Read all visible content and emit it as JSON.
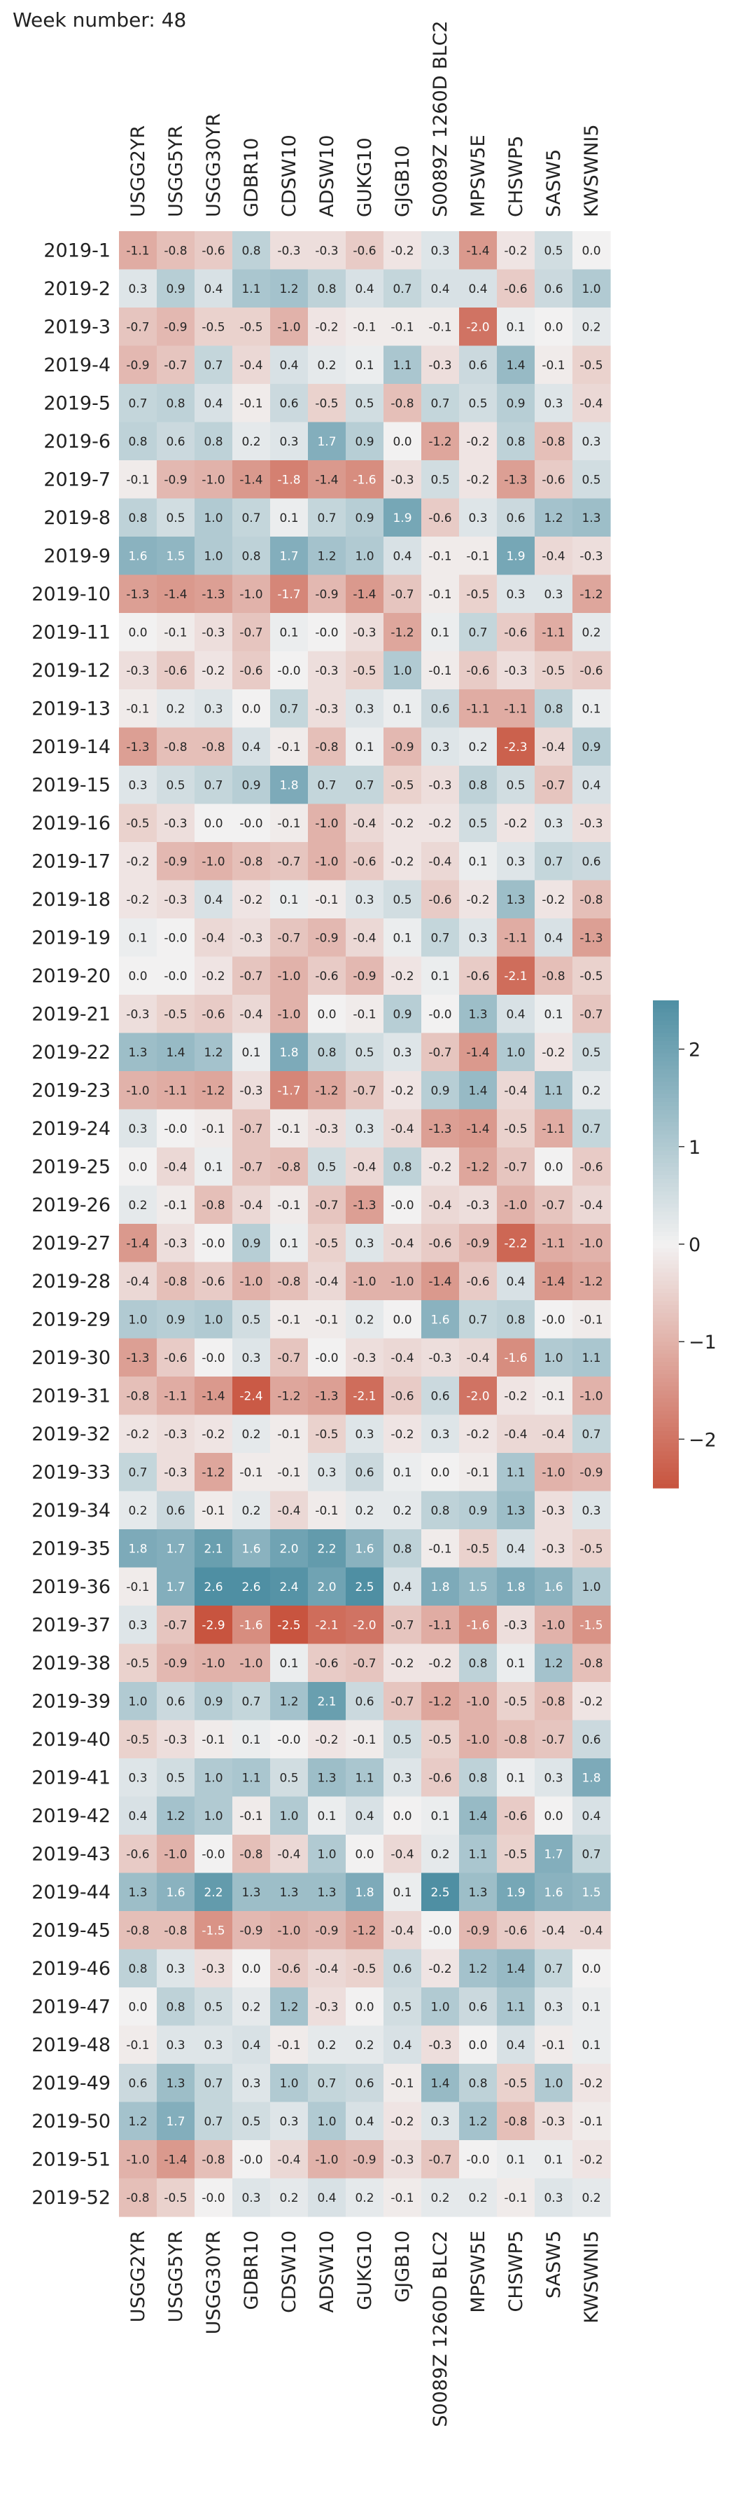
{
  "header": {
    "title": "Week number: 48"
  },
  "chart_data": {
    "type": "heatmap",
    "title": "Week number: 48",
    "columns": [
      "USGG2YR",
      "USGG5YR",
      "USGG30YR",
      "GDBR10",
      "CDSW10",
      "ADSW10",
      "GUKG10",
      "GJGB10",
      "S0089Z 1260D BLC2",
      "MPSW5E",
      "CHSWP5",
      "SASW5",
      "KWSWNI5"
    ],
    "rows": [
      "2019-1",
      "2019-2",
      "2019-3",
      "2019-4",
      "2019-5",
      "2019-6",
      "2019-7",
      "2019-8",
      "2019-9",
      "2019-10",
      "2019-11",
      "2019-12",
      "2019-13",
      "2019-14",
      "2019-15",
      "2019-16",
      "2019-17",
      "2019-18",
      "2019-19",
      "2019-20",
      "2019-21",
      "2019-22",
      "2019-23",
      "2019-24",
      "2019-25",
      "2019-26",
      "2019-27",
      "2019-28",
      "2019-29",
      "2019-30",
      "2019-31",
      "2019-32",
      "2019-33",
      "2019-34",
      "2019-35",
      "2019-36",
      "2019-37",
      "2019-38",
      "2019-39",
      "2019-40",
      "2019-41",
      "2019-42",
      "2019-43",
      "2019-44",
      "2019-45",
      "2019-46",
      "2019-47",
      "2019-48",
      "2019-49",
      "2019-50",
      "2019-51",
      "2019-52"
    ],
    "values": [
      [
        "-1.1",
        "-0.8",
        "-0.6",
        "0.8",
        "-0.3",
        "-0.3",
        "-0.6",
        "-0.2",
        "0.3",
        "-1.4",
        "-0.2",
        "0.5",
        "0.0"
      ],
      [
        "0.3",
        "0.9",
        "0.4",
        "1.1",
        "1.2",
        "0.8",
        "0.4",
        "0.7",
        "0.4",
        "0.4",
        "-0.6",
        "0.6",
        "1.0"
      ],
      [
        "-0.7",
        "-0.9",
        "-0.5",
        "-0.5",
        "-1.0",
        "-0.2",
        "-0.1",
        "-0.1",
        "-0.1",
        "-2.0",
        "0.1",
        "0.0",
        "0.2"
      ],
      [
        "-0.9",
        "-0.7",
        "0.7",
        "-0.4",
        "0.4",
        "0.2",
        "0.1",
        "1.1",
        "-0.3",
        "0.6",
        "1.4",
        "-0.1",
        "-0.5"
      ],
      [
        "0.7",
        "0.8",
        "0.4",
        "-0.1",
        "0.6",
        "-0.5",
        "0.5",
        "-0.8",
        "0.7",
        "0.5",
        "0.9",
        "0.3",
        "-0.4"
      ],
      [
        "0.8",
        "0.6",
        "0.8",
        "0.2",
        "0.3",
        "1.7",
        "0.9",
        "0.0",
        "-1.2",
        "-0.2",
        "0.8",
        "-0.8",
        "0.3"
      ],
      [
        "-0.1",
        "-0.9",
        "-1.0",
        "-1.4",
        "-1.8",
        "-1.4",
        "-1.6",
        "-0.3",
        "0.5",
        "-0.2",
        "-1.3",
        "-0.6",
        "0.5"
      ],
      [
        "0.8",
        "0.5",
        "1.0",
        "0.7",
        "0.1",
        "0.7",
        "0.9",
        "1.9",
        "-0.6",
        "0.3",
        "0.6",
        "1.2",
        "1.3"
      ],
      [
        "1.6",
        "1.5",
        "1.0",
        "0.8",
        "1.7",
        "1.2",
        "1.0",
        "0.4",
        "-0.1",
        "-0.1",
        "1.9",
        "-0.4",
        "-0.3"
      ],
      [
        "-1.3",
        "-1.4",
        "-1.3",
        "-1.0",
        "-1.7",
        "-0.9",
        "-1.4",
        "-0.7",
        "-0.1",
        "-0.5",
        "0.3",
        "0.3",
        "-1.2"
      ],
      [
        "0.0",
        "-0.1",
        "-0.3",
        "-0.7",
        "0.1",
        "-0.0",
        "-0.3",
        "-1.2",
        "0.1",
        "0.7",
        "-0.6",
        "-1.1",
        "0.2"
      ],
      [
        "-0.3",
        "-0.6",
        "-0.2",
        "-0.6",
        "-0.0",
        "-0.3",
        "-0.5",
        "1.0",
        "-0.1",
        "-0.6",
        "-0.3",
        "-0.5",
        "-0.6"
      ],
      [
        "-0.1",
        "0.2",
        "0.3",
        "0.0",
        "0.7",
        "-0.3",
        "0.3",
        "0.1",
        "0.6",
        "-1.1",
        "-1.1",
        "0.8",
        "0.1"
      ],
      [
        "-1.3",
        "-0.8",
        "-0.8",
        "0.4",
        "-0.1",
        "-0.8",
        "0.1",
        "-0.9",
        "0.3",
        "0.2",
        "-2.3",
        "-0.4",
        "0.9"
      ],
      [
        "0.3",
        "0.5",
        "0.7",
        "0.9",
        "1.8",
        "0.7",
        "0.7",
        "-0.5",
        "-0.3",
        "0.8",
        "0.5",
        "-0.7",
        "0.4"
      ],
      [
        "-0.5",
        "-0.3",
        "0.0",
        "-0.0",
        "-0.1",
        "-1.0",
        "-0.4",
        "-0.2",
        "-0.2",
        "0.5",
        "-0.2",
        "0.3",
        "-0.3"
      ],
      [
        "-0.2",
        "-0.9",
        "-1.0",
        "-0.8",
        "-0.7",
        "-1.0",
        "-0.6",
        "-0.2",
        "-0.4",
        "0.1",
        "0.3",
        "0.7",
        "0.6"
      ],
      [
        "-0.2",
        "-0.3",
        "0.4",
        "-0.2",
        "0.1",
        "-0.1",
        "0.3",
        "0.5",
        "-0.6",
        "-0.2",
        "1.3",
        "-0.2",
        "-0.8"
      ],
      [
        "0.1",
        "-0.0",
        "-0.4",
        "-0.3",
        "-0.7",
        "-0.9",
        "-0.4",
        "0.1",
        "0.7",
        "0.3",
        "-1.1",
        "0.4",
        "-1.3"
      ],
      [
        "0.0",
        "-0.0",
        "-0.2",
        "-0.7",
        "-1.0",
        "-0.6",
        "-0.9",
        "-0.2",
        "0.1",
        "-0.6",
        "-2.1",
        "-0.8",
        "-0.5"
      ],
      [
        "-0.3",
        "-0.5",
        "-0.6",
        "-0.4",
        "-1.0",
        "0.0",
        "-0.1",
        "0.9",
        "-0.0",
        "1.3",
        "0.4",
        "0.1",
        "-0.7"
      ],
      [
        "1.3",
        "1.4",
        "1.2",
        "0.1",
        "1.8",
        "0.8",
        "0.5",
        "0.3",
        "-0.7",
        "-1.4",
        "1.0",
        "-0.2",
        "0.5"
      ],
      [
        "-1.0",
        "-1.1",
        "-1.2",
        "-0.3",
        "-1.7",
        "-1.2",
        "-0.7",
        "-0.2",
        "0.9",
        "1.4",
        "-0.4",
        "1.1",
        "0.2"
      ],
      [
        "0.3",
        "-0.0",
        "-0.1",
        "-0.7",
        "-0.1",
        "-0.3",
        "0.3",
        "-0.4",
        "-1.3",
        "-1.4",
        "-0.5",
        "-1.1",
        "0.7"
      ],
      [
        "0.0",
        "-0.4",
        "0.1",
        "-0.7",
        "-0.8",
        "0.5",
        "-0.4",
        "0.8",
        "-0.2",
        "-1.2",
        "-0.7",
        "0.0",
        "-0.6"
      ],
      [
        "0.2",
        "-0.1",
        "-0.8",
        "-0.4",
        "-0.1",
        "-0.7",
        "-1.3",
        "-0.0",
        "-0.4",
        "-0.3",
        "-1.0",
        "-0.7",
        "-0.4"
      ],
      [
        "-1.4",
        "-0.3",
        "-0.0",
        "0.9",
        "0.1",
        "-0.5",
        "0.3",
        "-0.4",
        "-0.6",
        "-0.9",
        "-2.2",
        "-1.1",
        "-1.0"
      ],
      [
        "-0.4",
        "-0.8",
        "-0.6",
        "-1.0",
        "-0.8",
        "-0.4",
        "-1.0",
        "-1.0",
        "-1.4",
        "-0.6",
        "0.4",
        "-1.4",
        "-1.2"
      ],
      [
        "1.0",
        "0.9",
        "1.0",
        "0.5",
        "-0.1",
        "-0.1",
        "0.2",
        "0.0",
        "1.6",
        "0.7",
        "0.8",
        "-0.0",
        "-0.1"
      ],
      [
        "-1.3",
        "-0.6",
        "-0.0",
        "0.3",
        "-0.7",
        "-0.0",
        "-0.3",
        "-0.4",
        "-0.3",
        "-0.4",
        "-1.6",
        "1.0",
        "1.1"
      ],
      [
        "-0.8",
        "-1.1",
        "-1.4",
        "-2.4",
        "-1.2",
        "-1.3",
        "-2.1",
        "-0.6",
        "0.6",
        "-2.0",
        "-0.2",
        "-0.1",
        "-1.0"
      ],
      [
        "-0.2",
        "-0.3",
        "-0.2",
        "0.2",
        "-0.1",
        "-0.5",
        "0.3",
        "-0.2",
        "0.3",
        "-0.2",
        "-0.4",
        "-0.4",
        "0.7"
      ],
      [
        "0.7",
        "-0.3",
        "-1.2",
        "-0.1",
        "-0.1",
        "0.3",
        "0.6",
        "0.1",
        "0.0",
        "-0.1",
        "1.1",
        "-1.0",
        "-0.9"
      ],
      [
        "0.2",
        "0.6",
        "-0.1",
        "0.2",
        "-0.4",
        "-0.1",
        "0.2",
        "0.2",
        "0.8",
        "0.9",
        "1.3",
        "-0.3",
        "0.3"
      ],
      [
        "1.8",
        "1.7",
        "2.1",
        "1.6",
        "2.0",
        "2.2",
        "1.6",
        "0.8",
        "-0.1",
        "-0.5",
        "0.4",
        "-0.3",
        "-0.5"
      ],
      [
        "-0.1",
        "1.7",
        "2.6",
        "2.6",
        "2.4",
        "2.0",
        "2.5",
        "0.4",
        "1.8",
        "1.5",
        "1.8",
        "1.6",
        "1.0"
      ],
      [
        "0.3",
        "-0.7",
        "-2.9",
        "-1.6",
        "-2.5",
        "-2.1",
        "-2.0",
        "-0.7",
        "-1.1",
        "-1.6",
        "-0.3",
        "-1.0",
        "-1.5"
      ],
      [
        "-0.5",
        "-0.9",
        "-1.0",
        "-1.0",
        "0.1",
        "-0.6",
        "-0.7",
        "-0.2",
        "-0.2",
        "0.8",
        "0.1",
        "1.2",
        "-0.8"
      ],
      [
        "1.0",
        "0.6",
        "0.9",
        "0.7",
        "1.2",
        "2.1",
        "0.6",
        "-0.7",
        "-1.2",
        "-1.0",
        "-0.5",
        "-0.8",
        "-0.2"
      ],
      [
        "-0.5",
        "-0.3",
        "-0.1",
        "0.1",
        "-0.0",
        "-0.2",
        "-0.1",
        "0.5",
        "-0.5",
        "-1.0",
        "-0.8",
        "-0.7",
        "0.6"
      ],
      [
        "0.3",
        "0.5",
        "1.0",
        "1.1",
        "0.5",
        "1.3",
        "1.1",
        "0.3",
        "-0.6",
        "0.8",
        "0.1",
        "0.3",
        "1.8"
      ],
      [
        "0.4",
        "1.2",
        "1.0",
        "-0.1",
        "1.0",
        "0.1",
        "0.4",
        "0.0",
        "0.1",
        "1.4",
        "-0.6",
        "0.0",
        "0.4"
      ],
      [
        "-0.6",
        "-1.0",
        "-0.0",
        "-0.8",
        "-0.4",
        "1.0",
        "0.0",
        "-0.4",
        "0.2",
        "1.1",
        "-0.5",
        "1.7",
        "0.7"
      ],
      [
        "1.3",
        "1.6",
        "2.2",
        "1.3",
        "1.3",
        "1.3",
        "1.8",
        "0.1",
        "2.5",
        "1.3",
        "1.9",
        "1.6",
        "1.5"
      ],
      [
        "-0.8",
        "-0.8",
        "-1.5",
        "-0.9",
        "-1.0",
        "-0.9",
        "-1.2",
        "-0.4",
        "-0.0",
        "-0.9",
        "-0.6",
        "-0.4",
        "-0.4"
      ],
      [
        "0.8",
        "0.3",
        "-0.3",
        "0.0",
        "-0.6",
        "-0.4",
        "-0.5",
        "0.6",
        "-0.2",
        "1.2",
        "1.4",
        "0.7",
        "0.0"
      ],
      [
        "0.0",
        "0.8",
        "0.5",
        "0.2",
        "1.2",
        "-0.3",
        "0.0",
        "0.5",
        "1.0",
        "0.6",
        "1.1",
        "0.3",
        "0.1"
      ],
      [
        "-0.1",
        "0.3",
        "0.3",
        "0.4",
        "-0.1",
        "0.2",
        "0.2",
        "0.4",
        "-0.3",
        "0.0",
        "0.4",
        "-0.1",
        "0.1"
      ],
      [
        "0.6",
        "1.3",
        "0.7",
        "0.3",
        "1.0",
        "0.7",
        "0.6",
        "-0.1",
        "1.4",
        "0.8",
        "-0.5",
        "1.0",
        "-0.2"
      ],
      [
        "1.2",
        "1.7",
        "0.7",
        "0.5",
        "0.3",
        "1.0",
        "0.4",
        "-0.2",
        "0.3",
        "1.2",
        "-0.8",
        "-0.3",
        "-0.1"
      ],
      [
        "-1.0",
        "-1.4",
        "-0.8",
        "-0.0",
        "-0.4",
        "-1.0",
        "-0.9",
        "-0.3",
        "-0.7",
        "-0.0",
        "0.1",
        "0.1",
        "-0.2"
      ],
      [
        "-0.8",
        "-0.5",
        "-0.0",
        "0.3",
        "0.2",
        "0.4",
        "0.2",
        "-0.1",
        "0.2",
        "0.2",
        "-0.1",
        "0.3",
        "0.2"
      ]
    ],
    "colorbar": {
      "range": [
        -2.5,
        2.5
      ],
      "ticks": [
        "2",
        "1",
        "0",
        "−1",
        "−2"
      ],
      "low_color": "#c8543f",
      "mid_color": "#f2f1f1",
      "high_color": "#4f8fa3"
    },
    "x_labels_position": "top and bottom",
    "legend": "colorbar-right"
  }
}
